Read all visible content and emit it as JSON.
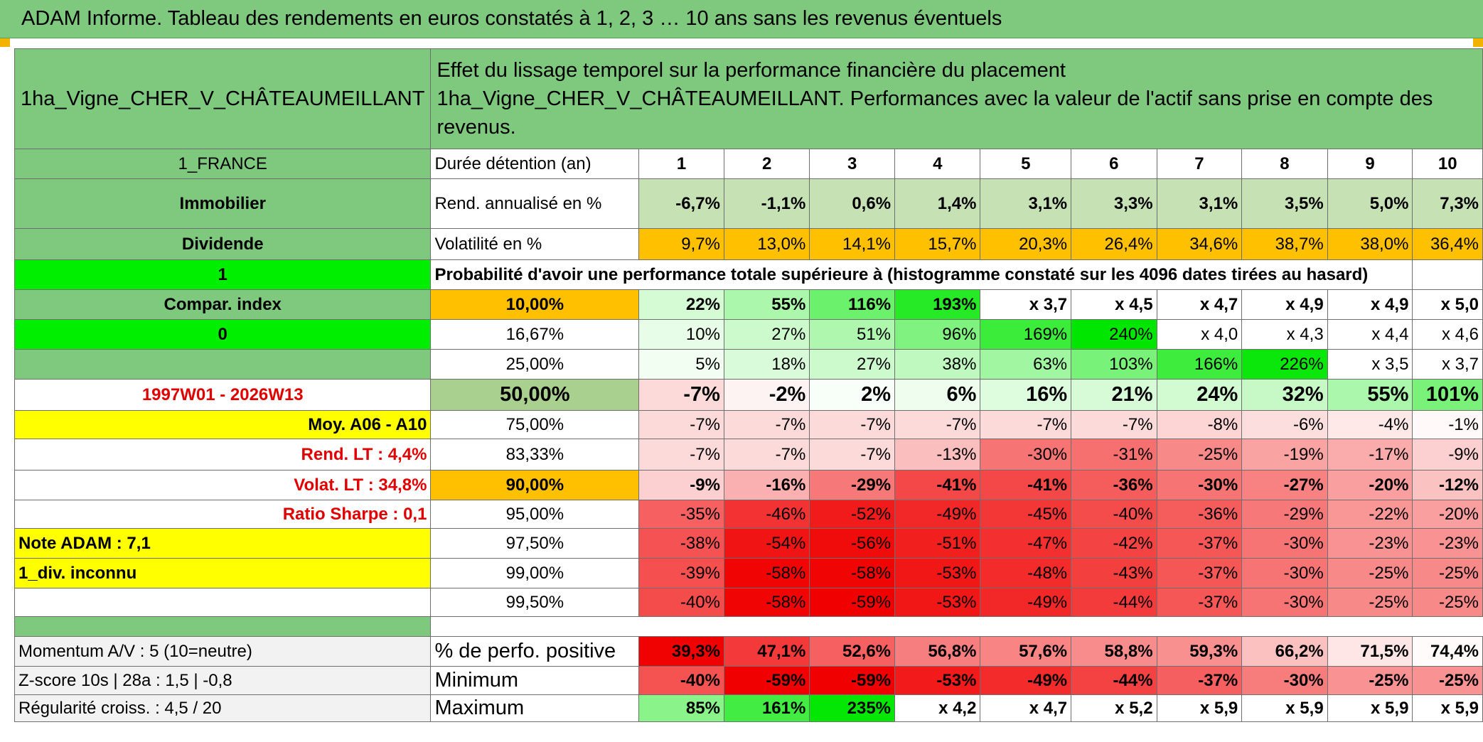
{
  "title": "ADAM Informe. Tableau des rendements en euros constatés à 1, 2, 3 … 10 ans sans les revenus éventuels",
  "asset": "1ha_Vigne_CHER_V_CHÂTEAUMEILLANT",
  "description": "Effet du lissage temporel sur la performance financière du placement 1ha_Vigne_CHER_V_CHÂTEAUMEILLANT. Performances avec la valeur de l'actif sans prise en compte des revenus.",
  "left": {
    "country": "1_FRANCE",
    "category": "Immobilier",
    "type": "Dividende",
    "one": "1",
    "compar": "Compar. index",
    "zero": "0",
    "period": "1997W01 - 2026W13",
    "moy": "Moy. A06 - A10",
    "rend_lt": "Rend. LT :   4,4%",
    "volat_lt": "Volat. LT :   34,8%",
    "sharpe": "Ratio Sharpe :    0,1",
    "note": "Note ADAM : 7,1",
    "div": "1_div. inconnu",
    "momentum": "Momentum A/V : 5 (10=neutre)",
    "zscore": "Z-score 10s | 28a : 1,5 | -0,8",
    "regularite": "Régularité croiss. : 4,5 / 20"
  },
  "labels": {
    "duree": "Durée détention (an)",
    "rend": "Rend. annualisé en %",
    "volat": "Volatilité en %",
    "proba": "Probabilité d'avoir une performance totale supérieure à (histogramme constaté sur les 4096 dates tirées au hasard)",
    "positive": "% de perfo. positive",
    "minimum": "Minimum",
    "maximum": "Maximum"
  },
  "years": [
    "1",
    "2",
    "3",
    "4",
    "5",
    "6",
    "7",
    "8",
    "9",
    "10"
  ],
  "rendement": [
    "-6,7%",
    "-1,1%",
    "0,6%",
    "1,4%",
    "3,1%",
    "3,3%",
    "3,1%",
    "3,5%",
    "5,0%",
    "7,3%"
  ],
  "volatilite": [
    "9,7%",
    "13,0%",
    "14,1%",
    "15,7%",
    "20,3%",
    "26,4%",
    "34,6%",
    "38,7%",
    "38,0%",
    "36,4%"
  ],
  "percentiles": [
    {
      "label": "10,00%",
      "values": [
        "22%",
        "55%",
        "116%",
        "193%",
        "x 3,7",
        "x 4,5",
        "x 4,7",
        "x 4,9",
        "x 4,9",
        "x 5,0"
      ]
    },
    {
      "label": "16,67%",
      "values": [
        "10%",
        "27%",
        "51%",
        "96%",
        "169%",
        "240%",
        "x 4,0",
        "x 4,3",
        "x 4,4",
        "x 4,6"
      ]
    },
    {
      "label": "25,00%",
      "values": [
        "5%",
        "18%",
        "27%",
        "38%",
        "63%",
        "103%",
        "166%",
        "226%",
        "x 3,5",
        "x 3,7"
      ]
    },
    {
      "label": "50,00%",
      "values": [
        "-7%",
        "-2%",
        "2%",
        "6%",
        "16%",
        "21%",
        "24%",
        "32%",
        "55%",
        "101%"
      ]
    },
    {
      "label": "75,00%",
      "values": [
        "-7%",
        "-7%",
        "-7%",
        "-7%",
        "-7%",
        "-7%",
        "-8%",
        "-6%",
        "-4%",
        "-1%"
      ]
    },
    {
      "label": "83,33%",
      "values": [
        "-7%",
        "-7%",
        "-7%",
        "-13%",
        "-30%",
        "-31%",
        "-25%",
        "-19%",
        "-17%",
        "-9%"
      ]
    },
    {
      "label": "90,00%",
      "values": [
        "-9%",
        "-16%",
        "-29%",
        "-41%",
        "-41%",
        "-36%",
        "-30%",
        "-27%",
        "-20%",
        "-12%"
      ]
    },
    {
      "label": "95,00%",
      "values": [
        "-35%",
        "-46%",
        "-52%",
        "-49%",
        "-45%",
        "-40%",
        "-36%",
        "-29%",
        "-22%",
        "-20%"
      ]
    },
    {
      "label": "97,50%",
      "values": [
        "-38%",
        "-54%",
        "-56%",
        "-51%",
        "-47%",
        "-42%",
        "-37%",
        "-30%",
        "-23%",
        "-23%"
      ]
    },
    {
      "label": "99,00%",
      "values": [
        "-39%",
        "-58%",
        "-58%",
        "-53%",
        "-48%",
        "-43%",
        "-37%",
        "-30%",
        "-25%",
        "-25%"
      ]
    },
    {
      "label": "99,50%",
      "values": [
        "-40%",
        "-58%",
        "-59%",
        "-53%",
        "-49%",
        "-44%",
        "-37%",
        "-30%",
        "-25%",
        "-25%"
      ]
    }
  ],
  "positive": [
    "39,3%",
    "47,1%",
    "52,6%",
    "56,8%",
    "57,6%",
    "58,8%",
    "59,3%",
    "66,2%",
    "71,5%",
    "74,4%"
  ],
  "minimum": [
    "-40%",
    "-59%",
    "-59%",
    "-53%",
    "-49%",
    "-44%",
    "-37%",
    "-30%",
    "-25%",
    "-25%"
  ],
  "maximum": [
    "85%",
    "161%",
    "235%",
    "x 4,2",
    "x 4,7",
    "x 5,2",
    "x 5,9",
    "x 5,9",
    "x 5,9",
    "x 5,9"
  ],
  "colors": {
    "header_green": "#7ec97e",
    "bright_green": "#00ee00",
    "orange": "#ffc000",
    "yellow": "#ffff00",
    "label_red": "#e00000"
  }
}
